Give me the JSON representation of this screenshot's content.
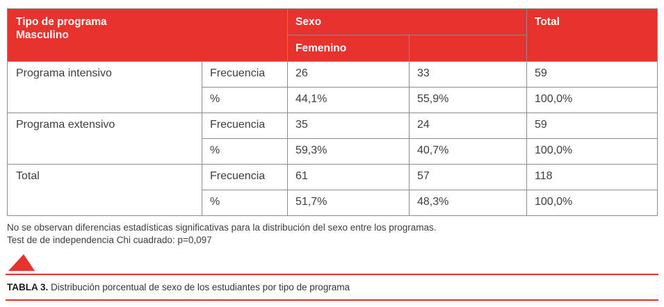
{
  "colors": {
    "accent_red": "#e8322d",
    "cell_border": "#8c8c8c",
    "body_text": "#3d3d3d",
    "header_text": "#ffffff"
  },
  "table": {
    "header": {
      "program_type_line1": "Tipo de programa",
      "program_type_line2": "Masculino",
      "sexo": "Sexo",
      "femenino": "Femenino",
      "sex_col2": "",
      "total": "Total"
    },
    "measure_labels": {
      "frequency": "Frecuencia",
      "percent": "%"
    },
    "rows": [
      {
        "name": "Programa intensivo",
        "freq": [
          "26",
          "33",
          "59"
        ],
        "pct": [
          "44,1%",
          "55,9%",
          "100,0%"
        ]
      },
      {
        "name": "Programa extensivo",
        "freq": [
          "35",
          "24",
          "59"
        ],
        "pct": [
          "59,3%",
          "40,7%",
          "100,0%"
        ]
      },
      {
        "name": "Total",
        "freq": [
          "61",
          "57",
          "118"
        ],
        "pct": [
          "51,7%",
          "48,3%",
          "100,0%"
        ]
      }
    ]
  },
  "notes": {
    "line1": "No se observan diferencias estadísticas significativas para la distribución del sexo entre los programas.",
    "line2": "Test de de independencia Chi cuadrado: p=0,097"
  },
  "caption": {
    "label": "TABLA 3.",
    "text": " Distribución porcentual de sexo de los estudiantes por tipo de programa"
  }
}
